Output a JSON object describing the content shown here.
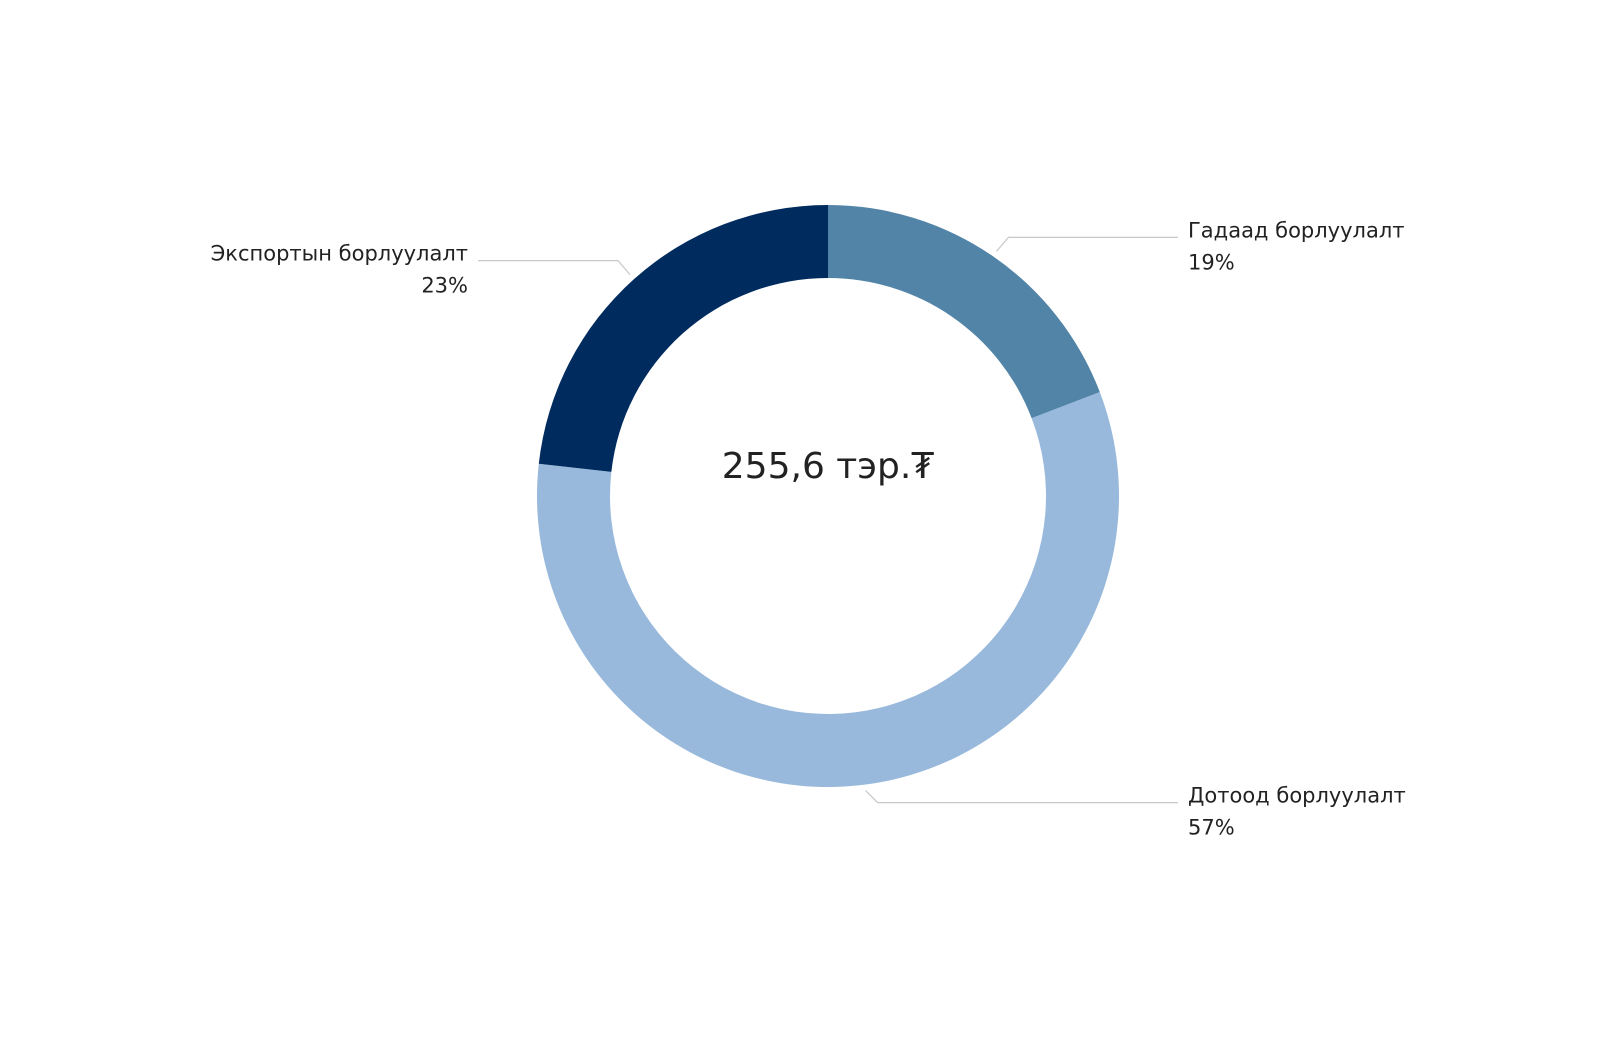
{
  "chart_data": {
    "type": "donut",
    "center_label": "255,6 тэр.₮",
    "categories": [
      "Гадаад борлуулалт",
      "Дотоод борлуулалт",
      "Экспортын борлуулалт"
    ],
    "values": [
      19,
      57,
      23
    ],
    "value_labels": [
      "19%",
      "57%",
      "23%"
    ],
    "colors": [
      "#5284a8",
      "#98b9db",
      "#002b5f"
    ]
  }
}
